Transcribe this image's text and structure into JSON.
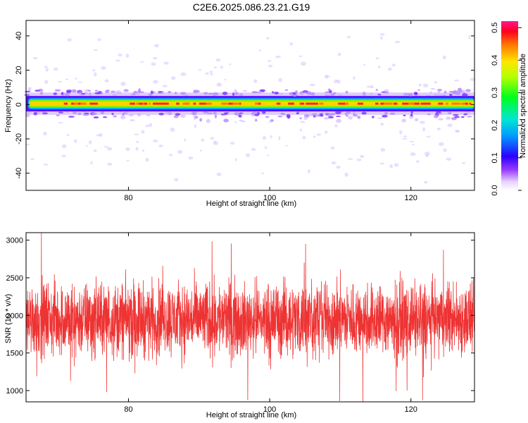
{
  "title": "C2E6.2025.086.23.21.G19",
  "chart_data": [
    {
      "type": "heatmap",
      "xlabel": "Height of straight line (km)",
      "ylabel": "Frequency (Hz)",
      "xlim": [
        65.5,
        129
      ],
      "ylim": [
        -50,
        49
      ],
      "xticks": [
        80,
        100,
        120
      ],
      "yticks": [
        -40,
        -20,
        0,
        20,
        40
      ],
      "colorbar": {
        "label": "Normalized spectral amplitude",
        "range": [
          0.0,
          0.52
        ],
        "ticks": [
          "0.0",
          "0.1",
          "0.2",
          "0.3",
          "0.4",
          "0.5"
        ],
        "tick_values": [
          0.0,
          0.1,
          0.2,
          0.3,
          0.4,
          0.5
        ]
      },
      "description_band": {
        "center_frequency": 0.5,
        "core_halfwidth": 1.2,
        "outer_halfwidth": 4.5
      }
    },
    {
      "type": "line",
      "xlabel": "Height of straight line (km)",
      "ylabel": "SNR (10 * v/v)",
      "xlim": [
        65.5,
        129
      ],
      "ylim": [
        850,
        3100
      ],
      "xticks": [
        80,
        100,
        120
      ],
      "yticks": [
        1000,
        1500,
        2000,
        2500,
        3000
      ],
      "color": "#ee3333",
      "series_summary": {
        "x_start": 65.5,
        "x_end": 129,
        "mean": 1950,
        "typical_min": 1300,
        "typical_max": 2600,
        "extreme_max": 3150,
        "extreme_min": 850,
        "n_points": 2600
      }
    }
  ]
}
